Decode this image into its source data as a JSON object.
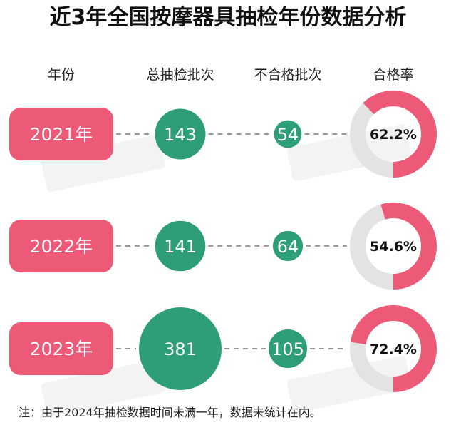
{
  "title": "近3年全国按摩器具抽检年份数据分析",
  "headers": {
    "year": "年份",
    "total": "总抽检批次",
    "failed": "不合格批次",
    "rate": "合格率"
  },
  "note": "注：由于2024年抽检数据时间未满一年，数据未统计在内。",
  "colors": {
    "pink": "#ec5a78",
    "green": "#2e9e76",
    "ring_bg": "#e3e3e3",
    "dash": "#9b9b9b"
  },
  "chart_data": {
    "type": "table",
    "title": "近3年全国按摩器具抽检年份数据分析",
    "columns": [
      "年份",
      "总抽检批次",
      "不合格批次",
      "合格率"
    ],
    "rows": [
      {
        "year": "2021年",
        "total": 143,
        "failed": 54,
        "rate": 62.2,
        "rate_label": "62.2%"
      },
      {
        "year": "2022年",
        "total": 141,
        "failed": 64,
        "rate": 54.6,
        "rate_label": "54.6%"
      },
      {
        "year": "2023年",
        "total": 381,
        "failed": 105,
        "rate": 72.4,
        "rate_label": "72.4%"
      }
    ]
  }
}
